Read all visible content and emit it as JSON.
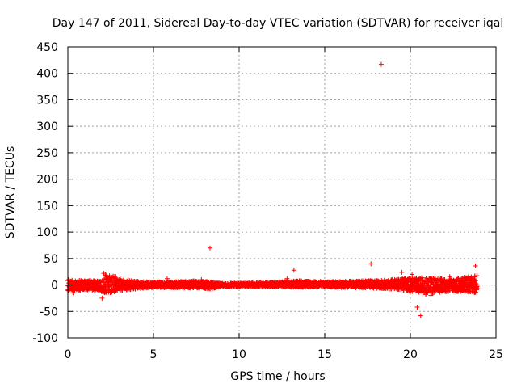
{
  "chart_data": {
    "type": "scatter",
    "title": "Day 147 of 2011, Sidereal Day-to-day VTEC variation (SDTVAR) for receiver iqal",
    "xlabel": "GPS time / hours",
    "ylabel": "SDTVAR / TECUs",
    "xlim": [
      0,
      25
    ],
    "ylim": [
      -100,
      450
    ],
    "xticks": [
      0,
      5,
      10,
      15,
      20,
      25
    ],
    "yticks": [
      -100,
      -50,
      0,
      50,
      100,
      150,
      200,
      250,
      300,
      350,
      400,
      450
    ],
    "grid": true,
    "marker": "+",
    "color": "#ff0000",
    "band_profile": [
      {
        "x": 0.0,
        "lo": -12,
        "hi": 10
      },
      {
        "x": 1.0,
        "lo": -10,
        "hi": 8
      },
      {
        "x": 1.9,
        "lo": -12,
        "hi": 9
      },
      {
        "x": 2.2,
        "lo": -16,
        "hi": 22
      },
      {
        "x": 2.6,
        "lo": -14,
        "hi": 18
      },
      {
        "x": 3.2,
        "lo": -10,
        "hi": 10
      },
      {
        "x": 4.5,
        "lo": -6,
        "hi": 6
      },
      {
        "x": 6.0,
        "lo": -5,
        "hi": 6
      },
      {
        "x": 7.5,
        "lo": -6,
        "hi": 8
      },
      {
        "x": 8.3,
        "lo": -8,
        "hi": 6
      },
      {
        "x": 9.0,
        "lo": -3,
        "hi": 3
      },
      {
        "x": 10.5,
        "lo": -3,
        "hi": 4
      },
      {
        "x": 12.5,
        "lo": -4,
        "hi": 6
      },
      {
        "x": 13.5,
        "lo": -5,
        "hi": 8
      },
      {
        "x": 15.0,
        "lo": -4,
        "hi": 6
      },
      {
        "x": 17.5,
        "lo": -6,
        "hi": 8
      },
      {
        "x": 19.0,
        "lo": -8,
        "hi": 10
      },
      {
        "x": 20.0,
        "lo": -12,
        "hi": 14
      },
      {
        "x": 21.0,
        "lo": -16,
        "hi": 14
      },
      {
        "x": 22.5,
        "lo": -12,
        "hi": 12
      },
      {
        "x": 23.9,
        "lo": -15,
        "hi": 18
      }
    ],
    "outliers": [
      {
        "x": 18.3,
        "y": 417
      },
      {
        "x": 8.3,
        "y": 70
      },
      {
        "x": 13.2,
        "y": 28
      },
      {
        "x": 17.7,
        "y": 40
      },
      {
        "x": 23.8,
        "y": 36
      },
      {
        "x": 2.0,
        "y": -25
      },
      {
        "x": 2.1,
        "y": 22
      },
      {
        "x": 20.4,
        "y": -42
      },
      {
        "x": 20.6,
        "y": -58
      },
      {
        "x": 20.9,
        "y": -18
      },
      {
        "x": 21.2,
        "y": -20
      },
      {
        "x": 7.8,
        "y": 10
      },
      {
        "x": 12.8,
        "y": 12
      },
      {
        "x": 19.5,
        "y": 24
      },
      {
        "x": 20.1,
        "y": 20
      },
      {
        "x": 22.3,
        "y": 16
      },
      {
        "x": 0.3,
        "y": -15
      },
      {
        "x": 5.8,
        "y": 12
      }
    ]
  }
}
